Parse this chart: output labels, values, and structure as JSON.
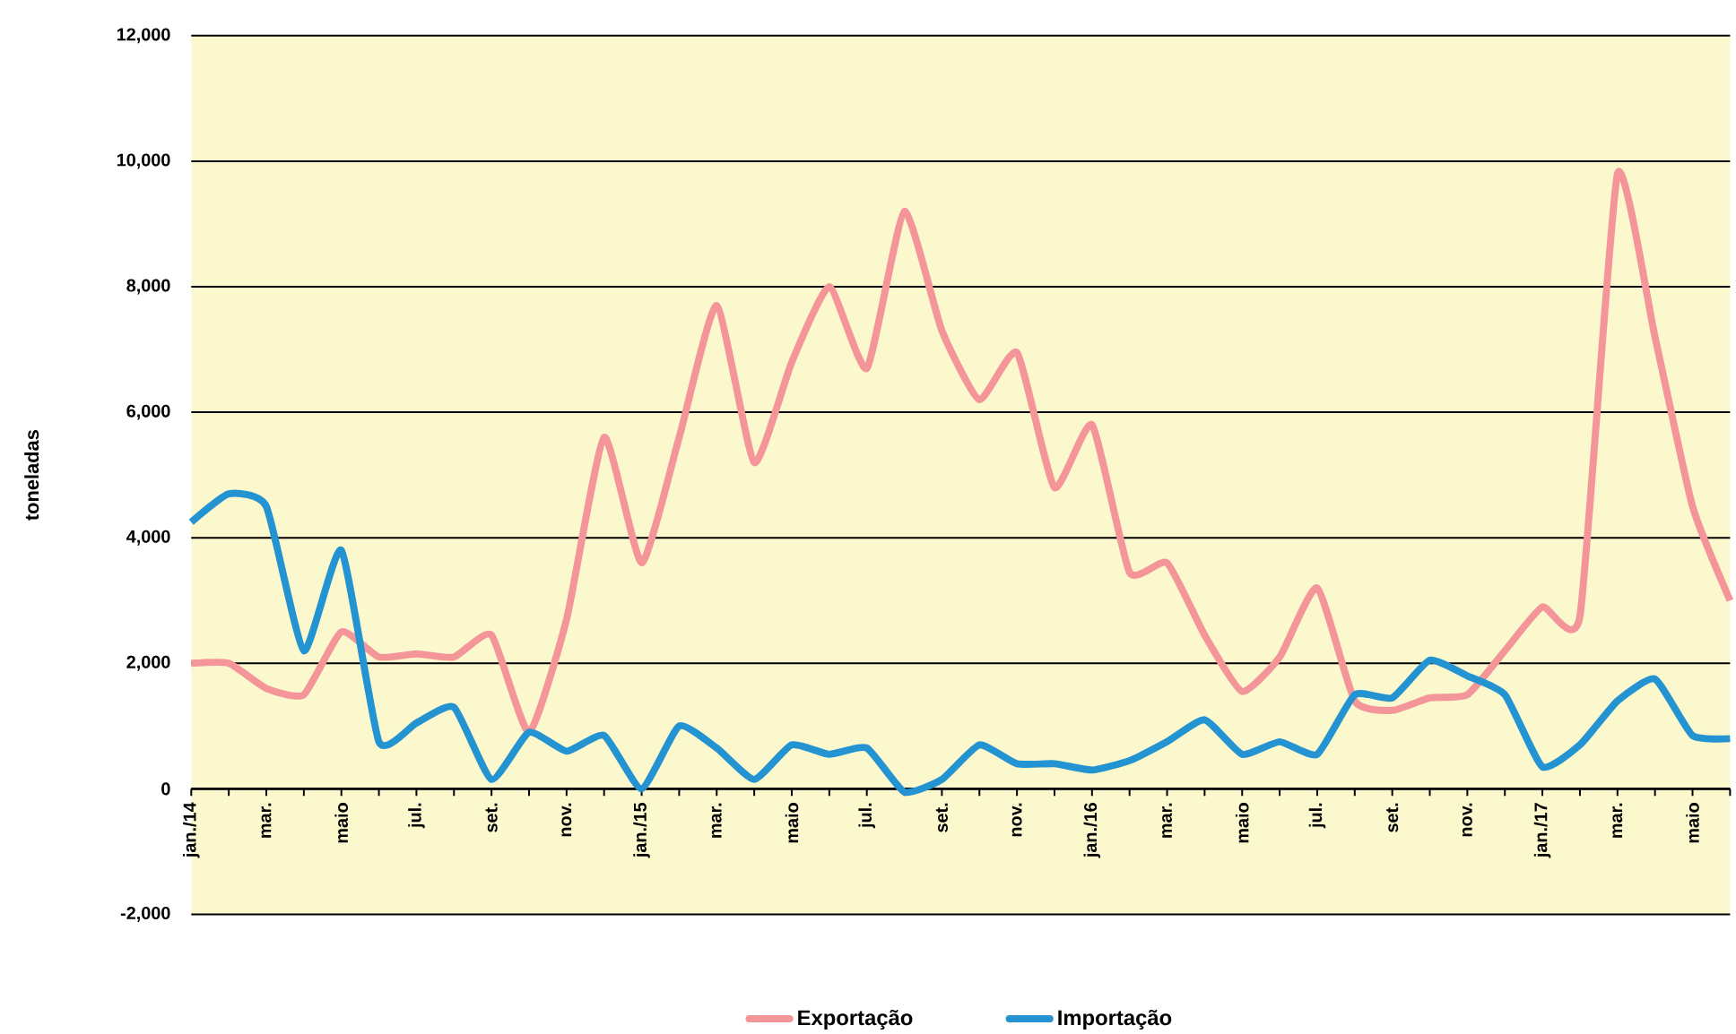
{
  "chart_data": {
    "type": "line",
    "ylabel": "toneladas",
    "categories": [
      "jan./14",
      null,
      "mar.",
      null,
      "maio",
      null,
      "jul.",
      null,
      "set.",
      null,
      "nov.",
      null,
      "jan./15",
      null,
      "mar.",
      null,
      "maio",
      null,
      "jul.",
      null,
      "set.",
      null,
      "nov.",
      null,
      "jan./16",
      null,
      "mar.",
      null,
      "maio",
      null,
      "jul.",
      null,
      "set.",
      null,
      "nov.",
      null,
      "jan./17",
      null,
      "mar.",
      null,
      "maio",
      null
    ],
    "series": [
      {
        "name": "Exportação",
        "color": "#f4959a",
        "values": [
          2000,
          2000,
          1600,
          1500,
          2500,
          2100,
          2150,
          2100,
          2450,
          900,
          2700,
          5600,
          3600,
          5600,
          7700,
          5200,
          6800,
          8000,
          6700,
          9200,
          7300,
          6200,
          6950,
          4800,
          5800,
          3450,
          3600,
          2450,
          1550,
          2100,
          3200,
          1400,
          1250,
          1450,
          1500,
          2200,
          2900,
          2750,
          9800,
          7200,
          4500,
          3000
        ]
      },
      {
        "name": "Importação",
        "color": "#2394d1",
        "values": [
          4250,
          4700,
          4500,
          2200,
          3800,
          750,
          1050,
          1300,
          150,
          900,
          600,
          850,
          0,
          1000,
          650,
          150,
          700,
          550,
          650,
          -50,
          150,
          700,
          400,
          400,
          300,
          450,
          750,
          1100,
          550,
          750,
          550,
          1500,
          1450,
          2050,
          1800,
          1500,
          350,
          700,
          1400,
          1750,
          850,
          800
        ]
      }
    ],
    "ylim": [
      -2000,
      12000
    ],
    "yticks": [
      {
        "value": -2000,
        "label": "-2,000"
      },
      0,
      {
        "value": 2000,
        "label": "2,000"
      },
      {
        "value": 4000,
        "label": "4,000"
      },
      {
        "value": 6000,
        "label": "6,000"
      },
      {
        "value": 8000,
        "label": "8,000"
      },
      {
        "value": 10000,
        "label": "10,000"
      },
      {
        "value": 12000,
        "label": "12,000"
      }
    ],
    "grid": "y",
    "legend": "bottom",
    "marker": "none",
    "line_style": "solid"
  }
}
